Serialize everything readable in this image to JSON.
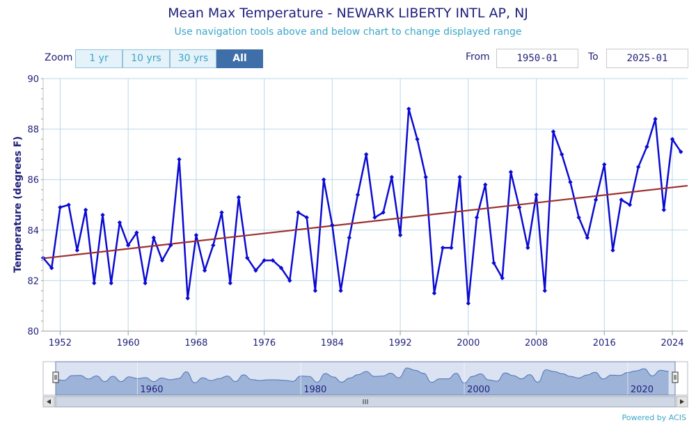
{
  "header": {
    "title": "Mean Max Temperature - NEWARK LIBERTY INTL AP, NJ",
    "subtitle": "Use navigation tools above and below chart to change displayed range"
  },
  "zoom": {
    "label": "Zoom",
    "buttons": [
      "1 yr",
      "10 yrs",
      "30 yrs",
      "All"
    ],
    "active": "All"
  },
  "range": {
    "from_label": "From",
    "from_value": "1950-01",
    "to_label": "To",
    "to_value": "2025-01"
  },
  "footer": {
    "credit": "Powered by ACIS"
  },
  "colors": {
    "series": "#0a0ad2",
    "trend": "#9b2f2f",
    "grid": "#b8d8ea",
    "axis_text": "#1f1f7a",
    "navigator_fill": "#8aa3cf",
    "navigator_line": "#4a72b8"
  },
  "chart_data": {
    "type": "line",
    "ylabel": "Temperature (degrees F)",
    "xlabel": "",
    "ylim": [
      80,
      90
    ],
    "xlim": [
      1950,
      2025.8
    ],
    "yticks": [
      80,
      82,
      84,
      86,
      88,
      90
    ],
    "xticks": [
      1952,
      1960,
      1968,
      1976,
      1984,
      1992,
      2000,
      2008,
      2016,
      2024
    ],
    "grid": true,
    "series": [
      {
        "x": [
          1950,
          1951,
          1952,
          1953,
          1954,
          1955,
          1956,
          1957,
          1958,
          1959,
          1960,
          1961,
          1962,
          1963,
          1964,
          1965,
          1966,
          1967,
          1968,
          1969,
          1970,
          1971,
          1972,
          1973,
          1974,
          1975,
          1976,
          1977,
          1978,
          1979,
          1980,
          1981,
          1982,
          1983,
          1984,
          1985,
          1986,
          1987,
          1988,
          1989,
          1990,
          1991,
          1992,
          1993,
          1994,
          1995,
          1996,
          1997,
          1998,
          1999,
          2000,
          2001,
          2002,
          2003,
          2004,
          2005,
          2006,
          2007,
          2008,
          2009,
          2010,
          2011,
          2012,
          2013,
          2014,
          2015,
          2016,
          2017,
          2018,
          2019,
          2020,
          2021,
          2022,
          2023,
          2024,
          2025
        ],
        "values": [
          82.9,
          82.5,
          84.9,
          85.0,
          83.2,
          84.8,
          81.9,
          84.6,
          81.9,
          84.3,
          83.4,
          83.9,
          81.9,
          83.7,
          82.8,
          83.4,
          86.8,
          81.3,
          83.8,
          82.4,
          83.4,
          84.7,
          81.9,
          85.3,
          82.9,
          82.4,
          82.8,
          82.8,
          82.5,
          82.0,
          84.7,
          84.5,
          81.6,
          86.0,
          84.2,
          81.6,
          83.7,
          85.4,
          87.0,
          84.5,
          84.7,
          86.1,
          83.8,
          88.8,
          87.6,
          86.1,
          81.5,
          83.3,
          83.3,
          86.1,
          81.1,
          84.5,
          85.8,
          82.7,
          82.1,
          86.3,
          84.9,
          83.3,
          85.4,
          81.6,
          87.9,
          87.0,
          85.9,
          84.5,
          83.7,
          85.2,
          86.6,
          83.2,
          85.2,
          85.0,
          86.5,
          87.3,
          88.4,
          84.8,
          87.6,
          87.1
        ]
      }
    ],
    "trend": {
      "x": [
        1950,
        2025.8
      ],
      "values": [
        82.88,
        85.76
      ]
    },
    "navigator": {
      "xlim": [
        1950,
        2025.8
      ],
      "ylim": [
        75,
        92
      ],
      "ticks": [
        1960,
        1980,
        2000,
        2020
      ]
    }
  }
}
